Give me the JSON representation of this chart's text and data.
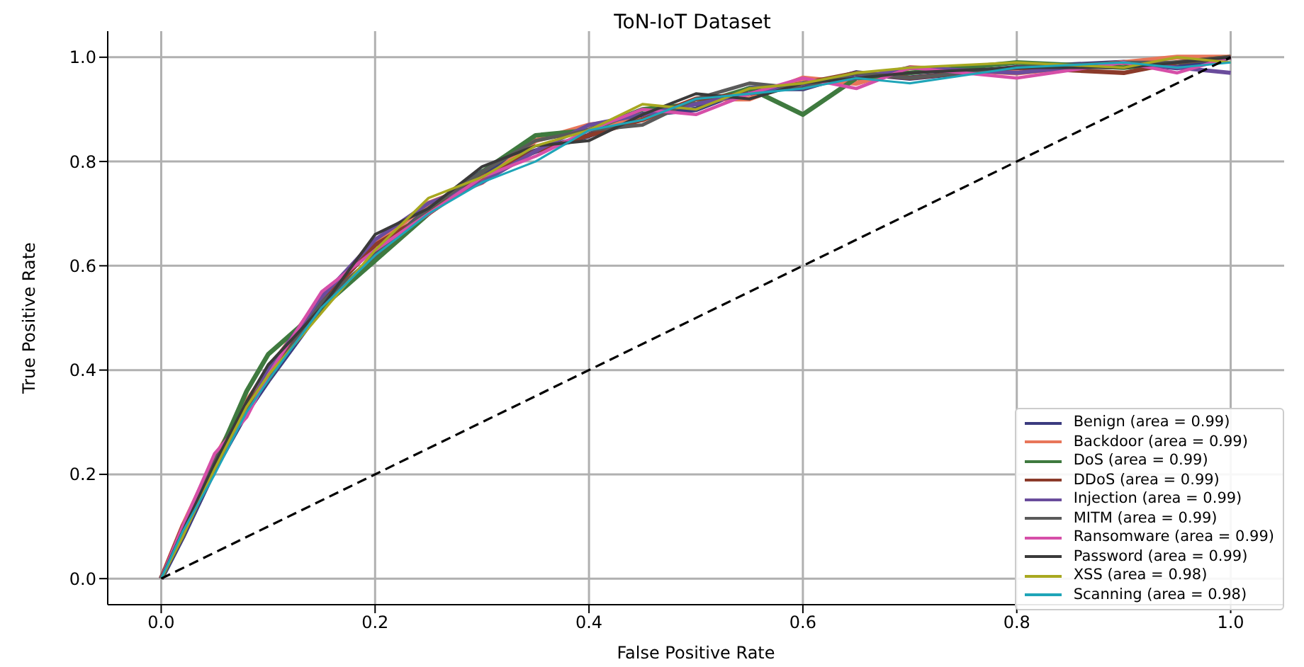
{
  "chart_data": {
    "type": "line",
    "title": "ToN-IoT Dataset",
    "xlabel": "False Positive Rate",
    "ylabel": "True Positive Rate",
    "x": [
      0,
      0.02,
      0.05,
      0.08,
      0.1,
      0.15,
      0.2,
      0.25,
      0.3,
      0.35,
      0.4,
      0.45,
      0.5,
      0.55,
      0.6,
      0.65,
      0.7,
      0.8,
      0.9,
      0.95,
      1.0
    ],
    "series": [
      {
        "name": "Benign (area = 0.99)",
        "color": "#3b3b7f",
        "values": [
          0,
          0.08,
          0.21,
          0.32,
          0.38,
          0.52,
          0.62,
          0.71,
          0.78,
          0.82,
          0.85,
          0.89,
          0.9,
          0.94,
          0.94,
          0.97,
          0.96,
          0.98,
          0.99,
          0.98,
          1.0
        ]
      },
      {
        "name": "Backdoor (area = 0.99)",
        "color": "#e8765a",
        "values": [
          0,
          0.1,
          0.23,
          0.34,
          0.4,
          0.54,
          0.64,
          0.72,
          0.76,
          0.84,
          0.87,
          0.88,
          0.92,
          0.92,
          0.96,
          0.95,
          0.98,
          0.97,
          0.99,
          1.0,
          1.0
        ]
      },
      {
        "name": "DoS (area = 0.99)",
        "color": "#3f7a3f",
        "values": [
          0,
          0.09,
          0.22,
          0.36,
          0.43,
          0.52,
          0.61,
          0.7,
          0.78,
          0.85,
          0.86,
          0.9,
          0.91,
          0.94,
          0.89,
          0.96,
          0.97,
          0.99,
          0.98,
          0.99,
          1.0
        ]
      },
      {
        "name": "DDoS (area = 0.99)",
        "color": "#8b3a2a",
        "values": [
          0,
          0.1,
          0.21,
          0.33,
          0.39,
          0.53,
          0.64,
          0.7,
          0.77,
          0.82,
          0.85,
          0.88,
          0.92,
          0.93,
          0.95,
          0.97,
          0.96,
          0.98,
          0.97,
          0.99,
          1.0
        ]
      },
      {
        "name": "Injection (area = 0.99)",
        "color": "#6a4c9c",
        "values": [
          0,
          0.09,
          0.22,
          0.32,
          0.4,
          0.54,
          0.65,
          0.72,
          0.76,
          0.82,
          0.87,
          0.89,
          0.91,
          0.93,
          0.95,
          0.96,
          0.98,
          0.97,
          0.99,
          0.98,
          0.97
        ]
      },
      {
        "name": "MITM (area = 0.99)",
        "color": "#5a5a5a",
        "values": [
          0,
          0.08,
          0.23,
          0.33,
          0.38,
          0.53,
          0.62,
          0.71,
          0.78,
          0.84,
          0.86,
          0.87,
          0.92,
          0.95,
          0.94,
          0.97,
          0.96,
          0.98,
          0.99,
          0.99,
          1.0
        ]
      },
      {
        "name": "Ransomware (area = 0.99)",
        "color": "#d64fa8",
        "values": [
          0,
          0.1,
          0.24,
          0.31,
          0.39,
          0.55,
          0.63,
          0.7,
          0.77,
          0.81,
          0.86,
          0.9,
          0.89,
          0.93,
          0.96,
          0.94,
          0.98,
          0.96,
          0.99,
          0.97,
          1.0
        ]
      },
      {
        "name": "Password (area = 0.99)",
        "color": "#3a3a3a",
        "values": [
          0,
          0.09,
          0.22,
          0.34,
          0.41,
          0.52,
          0.66,
          0.71,
          0.79,
          0.83,
          0.84,
          0.89,
          0.93,
          0.92,
          0.95,
          0.96,
          0.97,
          0.98,
          0.98,
          0.99,
          1.0
        ]
      },
      {
        "name": "XSS (area = 0.98)",
        "color": "#a8a820",
        "values": [
          0,
          0.08,
          0.21,
          0.33,
          0.39,
          0.51,
          0.63,
          0.73,
          0.77,
          0.83,
          0.86,
          0.91,
          0.9,
          0.94,
          0.95,
          0.97,
          0.98,
          0.99,
          0.98,
          1.0,
          0.99
        ]
      },
      {
        "name": "Scanning (area = 0.98)",
        "color": "#1fa5b8",
        "values": [
          0,
          0.09,
          0.2,
          0.32,
          0.38,
          0.52,
          0.62,
          0.7,
          0.76,
          0.8,
          0.86,
          0.88,
          0.92,
          0.93,
          0.94,
          0.96,
          0.95,
          0.98,
          0.99,
          0.98,
          0.99
        ]
      },
      {
        "type": "line",
        "color": "#000000",
        "line_style": "dashed",
        "x": [
          0,
          1
        ],
        "values": [
          0,
          1
        ]
      }
    ],
    "xlim": [
      -0.05,
      1.05
    ],
    "ylim": [
      -0.05,
      1.05
    ],
    "xticks": [
      {
        "value": 0,
        "label": "0.0"
      },
      0.2,
      0.4,
      0.6,
      0.8,
      {
        "value": 1,
        "label": "1.0"
      }
    ],
    "yticks": [
      {
        "value": 0,
        "label": "0.0"
      },
      0.2,
      0.4,
      0.6,
      0.8,
      {
        "value": 1,
        "label": "1.0"
      }
    ],
    "grid": true,
    "legend": "bottom right",
    "line_style": "solid"
  }
}
